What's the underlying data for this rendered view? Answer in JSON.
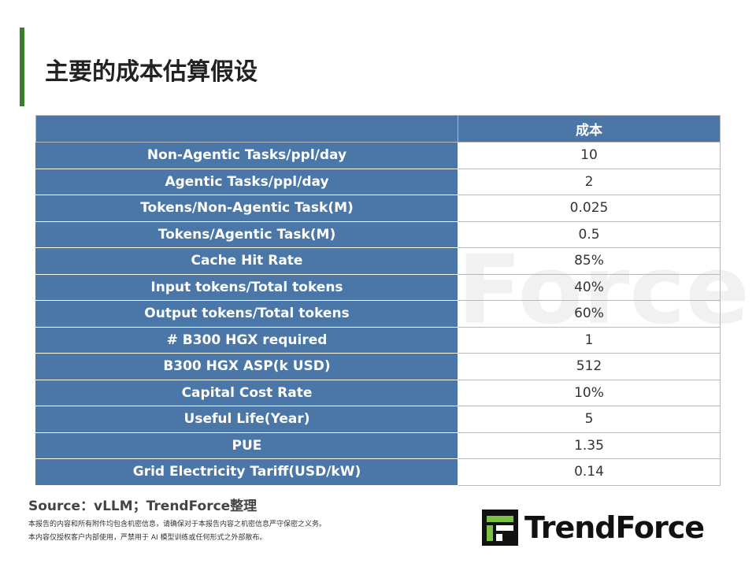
{
  "header": {
    "title": "主要的成本估算假设"
  },
  "table": {
    "columns": [
      "",
      "成本"
    ],
    "rows": [
      [
        "Non-Agentic Tasks/ppl/day",
        "10"
      ],
      [
        "Agentic Tasks/ppl/day",
        "2"
      ],
      [
        "Tokens/Non-Agentic Task(M)",
        "0.025"
      ],
      [
        "Tokens/Agentic Task(M)",
        "0.5"
      ],
      [
        "Cache Hit Rate",
        "85%"
      ],
      [
        "Input tokens/Total tokens",
        "40%"
      ],
      [
        "Output tokens/Total tokens",
        "60%"
      ],
      [
        "# B300 HGX required",
        "1"
      ],
      [
        "B300 HGX ASP(k USD)",
        "512"
      ],
      [
        "Capital Cost Rate",
        "10%"
      ],
      [
        "Useful Life(Year)",
        "5"
      ],
      [
        "PUE",
        "1.35"
      ],
      [
        "Grid Electricity Tariff(USD/kW)",
        "0.14"
      ]
    ]
  },
  "footer": {
    "source": "Source：vLLM；TrendForce整理",
    "disclaimer": [
      "本报告的内容和所有附件均包含机密信息，请确保对于本报告内容之机密信息严守保密之义务。",
      "本内容仅授权客户内部使用，严禁用于 AI 模型训练或任何形式之外部散布。"
    ],
    "logo": "TrendForce"
  }
}
